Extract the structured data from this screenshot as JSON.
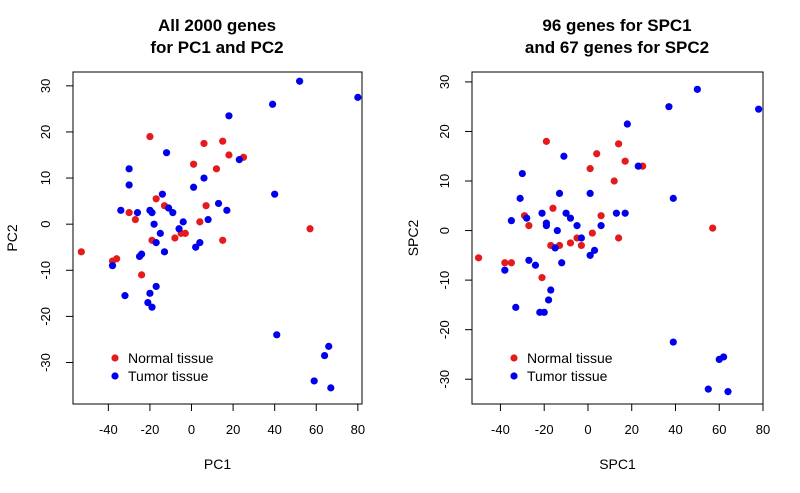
{
  "chart_data": [
    {
      "type": "scatter",
      "title": [
        "All 2000 genes",
        "for PC1 and PC2"
      ],
      "xlabel": "PC1",
      "ylabel": "PC2",
      "xlim": [
        -57,
        82
      ],
      "ylim": [
        -39,
        33
      ],
      "xticks": [
        -40,
        -20,
        0,
        20,
        40,
        60,
        80
      ],
      "yticks": [
        -30,
        -20,
        -10,
        0,
        10,
        20,
        30
      ],
      "legend": {
        "position": "bottom-left"
      },
      "series": [
        {
          "name": "Normal tissue",
          "color": "#e41a1c",
          "points": [
            [
              -53,
              -6
            ],
            [
              -38,
              -8
            ],
            [
              -36,
              -7.5
            ],
            [
              -30,
              2.5
            ],
            [
              -27,
              1
            ],
            [
              -24,
              -11
            ],
            [
              -20,
              19
            ],
            [
              -19,
              -3.5
            ],
            [
              -17,
              5.5
            ],
            [
              -13,
              4
            ],
            [
              -8,
              -3
            ],
            [
              -5,
              -2
            ],
            [
              -3,
              -2
            ],
            [
              1,
              13
            ],
            [
              4,
              0.5
            ],
            [
              6,
              17.5
            ],
            [
              7,
              4
            ],
            [
              12,
              12
            ],
            [
              15,
              18
            ],
            [
              15,
              -3.5
            ],
            [
              18,
              15
            ],
            [
              25,
              14.5
            ],
            [
              57,
              -1
            ]
          ]
        },
        {
          "name": "Tumor tissue",
          "color": "#0000ee",
          "points": [
            [
              -38,
              -9
            ],
            [
              -34,
              3
            ],
            [
              -32,
              -15.5
            ],
            [
              -30,
              12
            ],
            [
              -30,
              8.5
            ],
            [
              -26,
              2.5
            ],
            [
              -25,
              -7
            ],
            [
              -24,
              -6.5
            ],
            [
              -21,
              -17
            ],
            [
              -20,
              3
            ],
            [
              -20,
              -15
            ],
            [
              -19,
              -18
            ],
            [
              -19,
              2.5
            ],
            [
              -18,
              0
            ],
            [
              -17,
              -13.5
            ],
            [
              -17,
              -4
            ],
            [
              -15,
              -2
            ],
            [
              -14,
              6.5
            ],
            [
              -13,
              -6
            ],
            [
              -12,
              15.5
            ],
            [
              -11,
              3.5
            ],
            [
              -9,
              2.5
            ],
            [
              -6,
              -1
            ],
            [
              -4,
              0.5
            ],
            [
              1,
              8
            ],
            [
              2,
              -5
            ],
            [
              4,
              -4
            ],
            [
              6,
              10
            ],
            [
              8,
              1
            ],
            [
              13,
              4.5
            ],
            [
              17,
              3
            ],
            [
              18,
              23.5
            ],
            [
              23,
              14
            ],
            [
              39,
              26
            ],
            [
              40,
              6.5
            ],
            [
              41,
              -24
            ],
            [
              52,
              31
            ],
            [
              59,
              -34
            ],
            [
              64,
              -28.5
            ],
            [
              66,
              -26.5
            ],
            [
              67,
              -35.5
            ],
            [
              80,
              27.5
            ]
          ]
        }
      ]
    },
    {
      "type": "scatter",
      "title": [
        "96 genes for SPC1",
        "and 67 genes for SPC2"
      ],
      "xlabel": "SPC1",
      "ylabel": "SPC2",
      "xlim": [
        -53,
        80
      ],
      "ylim": [
        -35,
        32
      ],
      "xticks": [
        -40,
        -20,
        0,
        20,
        40,
        60,
        80
      ],
      "yticks": [
        -30,
        -20,
        -10,
        0,
        10,
        20,
        30
      ],
      "legend": {
        "position": "bottom-left"
      },
      "series": [
        {
          "name": "Normal tissue",
          "color": "#e41a1c",
          "points": [
            [
              -50,
              -5.5
            ],
            [
              -38,
              -6.5
            ],
            [
              -35,
              -6.5
            ],
            [
              -29,
              3
            ],
            [
              -27,
              1
            ],
            [
              -21,
              -9.5
            ],
            [
              -19,
              18
            ],
            [
              -17,
              -3
            ],
            [
              -16,
              4.5
            ],
            [
              -13,
              -3
            ],
            [
              -8,
              -2.5
            ],
            [
              -5,
              -1.5
            ],
            [
              -3,
              -3
            ],
            [
              1,
              12.5
            ],
            [
              2,
              -0.5
            ],
            [
              4,
              15.5
            ],
            [
              6,
              3
            ],
            [
              12,
              10
            ],
            [
              14,
              17.5
            ],
            [
              14,
              -1.5
            ],
            [
              17,
              14
            ],
            [
              25,
              13
            ],
            [
              57,
              0.5
            ]
          ]
        },
        {
          "name": "Tumor tissue",
          "color": "#0000ee",
          "points": [
            [
              -38,
              -8
            ],
            [
              -35,
              2
            ],
            [
              -33,
              -15.5
            ],
            [
              -31,
              6.5
            ],
            [
              -30,
              11.5
            ],
            [
              -28,
              2.5
            ],
            [
              -27,
              -6
            ],
            [
              -24,
              -7
            ],
            [
              -22,
              -16.5
            ],
            [
              -21,
              3.5
            ],
            [
              -20,
              -16.5
            ],
            [
              -19,
              1.5
            ],
            [
              -19,
              1
            ],
            [
              -18,
              -14
            ],
            [
              -17,
              -12
            ],
            [
              -15,
              -3.5
            ],
            [
              -14,
              0
            ],
            [
              -13,
              7.5
            ],
            [
              -12,
              -6.5
            ],
            [
              -11,
              15
            ],
            [
              -10,
              3.5
            ],
            [
              -8,
              2.5
            ],
            [
              -5,
              1
            ],
            [
              -3,
              -1.5
            ],
            [
              1,
              7.5
            ],
            [
              1,
              -5
            ],
            [
              3,
              -4
            ],
            [
              6,
              1
            ],
            [
              13,
              3.5
            ],
            [
              17,
              3.5
            ],
            [
              18,
              21.5
            ],
            [
              23,
              13
            ],
            [
              37,
              25
            ],
            [
              39,
              6.5
            ],
            [
              39,
              -22.5
            ],
            [
              50,
              28.5
            ],
            [
              55,
              -32
            ],
            [
              60,
              -26
            ],
            [
              62,
              -25.5
            ],
            [
              64,
              -32.5
            ],
            [
              78,
              24.5
            ]
          ]
        }
      ]
    }
  ]
}
